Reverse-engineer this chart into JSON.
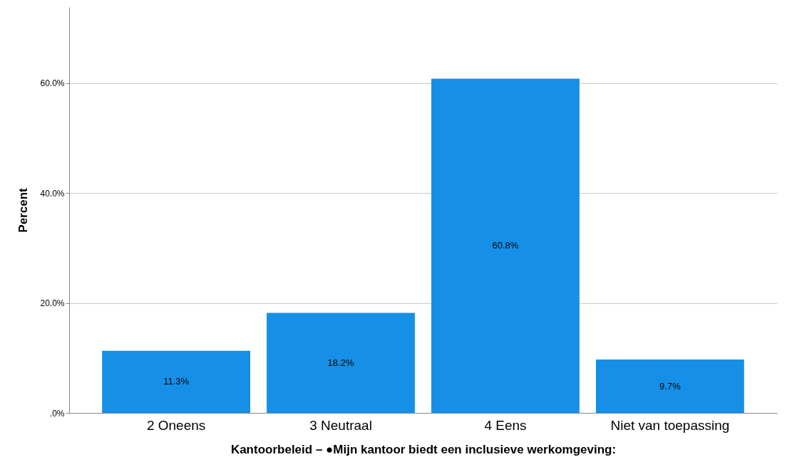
{
  "chart_data": {
    "type": "bar",
    "xlabel": "Kantoorbeleid – ●Mijn kantoor biedt een inclusieve werkomgeving:",
    "ylabel": "Percent",
    "categories": [
      "2 Oneens",
      "3 Neutraal",
      "4 Eens",
      "Niet van toepassing"
    ],
    "values": [
      11.3,
      18.2,
      60.8,
      9.7
    ],
    "value_labels": [
      "11.3%",
      "18.2%",
      "60.8%",
      "9.7%"
    ],
    "color": "#1690e6",
    "ylim": [
      0,
      73.8
    ],
    "yticks": [
      {
        "value": 0,
        "label": ".0%"
      },
      {
        "value": 20,
        "label": "20.0%"
      },
      {
        "value": 40,
        "label": "40.0%"
      },
      {
        "value": 60,
        "label": "60.0%"
      }
    ],
    "grid": "y"
  }
}
